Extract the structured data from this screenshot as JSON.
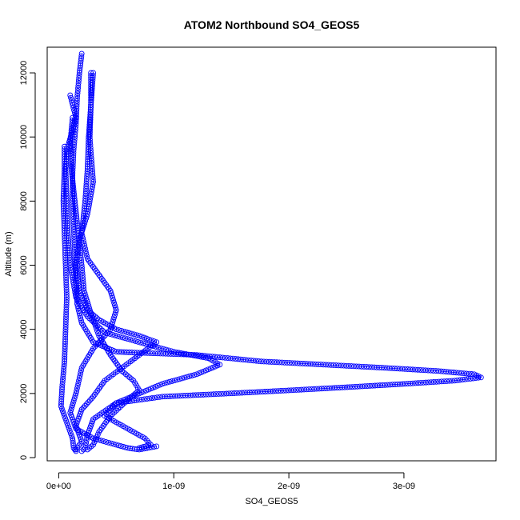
{
  "chart_data": {
    "type": "scatter",
    "title": "ATOM2 Northbound SO4_GEOS5",
    "xlabel": "SO4_GEOS5",
    "ylabel": "Altitude (m)",
    "xlim": [
      -1e-10,
      3.8e-09
    ],
    "ylim": [
      -100,
      12800
    ],
    "xticks": [
      0,
      1e-09,
      2e-09,
      3e-09
    ],
    "xtick_labels": [
      "0e+00",
      "1e-09",
      "2e-09",
      "3e-09"
    ],
    "yticks": [
      0,
      2000,
      4000,
      6000,
      8000,
      10000,
      12000
    ],
    "ytick_labels": [
      "0",
      "2000",
      "4000",
      "6000",
      "8000",
      "10000",
      "12000"
    ],
    "grid": false,
    "marker": "open-circle",
    "color": "#0000ff",
    "series": [
      {
        "name": "",
        "lines": true,
        "points": [
          [
            2e-10,
            12600
          ],
          [
            1.8e-10,
            12000
          ],
          [
            1.6e-10,
            11200
          ],
          [
            1.5e-10,
            10400
          ],
          [
            1.3e-10,
            9600
          ],
          [
            1.2e-10,
            8800
          ],
          [
            1.2e-10,
            8000
          ],
          [
            1.3e-10,
            7200
          ],
          [
            1.4e-10,
            6400
          ],
          [
            1.5e-10,
            5600
          ],
          [
            1.6e-10,
            4800
          ],
          [
            2e-10,
            4200
          ],
          [
            3e-10,
            3600
          ],
          [
            5e-10,
            3300
          ],
          [
            1.2e-09,
            3200
          ],
          [
            1.76e-09,
            3000
          ],
          [
            2.3e-09,
            2900
          ],
          [
            2.83e-09,
            2800
          ],
          [
            3.3e-09,
            2700
          ],
          [
            3.61e-09,
            2600
          ],
          [
            3.67e-09,
            2500
          ],
          [
            3.44e-09,
            2400
          ],
          [
            3.01e-09,
            2300
          ],
          [
            2.53e-09,
            2200
          ],
          [
            2.02e-09,
            2100
          ],
          [
            1.48e-09,
            2000
          ],
          [
            9e-10,
            1900
          ],
          [
            5e-10,
            1700
          ],
          [
            3e-10,
            1200
          ],
          [
            2.5e-10,
            700
          ],
          [
            2.3e-10,
            300
          ],
          [
            2e-10,
            200
          ]
        ]
      },
      {
        "name": "",
        "lines": true,
        "points": [
          [
            3e-10,
            12000
          ],
          [
            2.8e-10,
            11000
          ],
          [
            2.6e-10,
            10000
          ],
          [
            2.5e-10,
            9000
          ],
          [
            2.3e-10,
            8000
          ],
          [
            2e-10,
            7000
          ],
          [
            2.5e-10,
            6200
          ],
          [
            3.5e-10,
            5700
          ],
          [
            4.5e-10,
            5200
          ],
          [
            5e-10,
            4600
          ],
          [
            4.5e-10,
            4000
          ],
          [
            3e-10,
            3400
          ],
          [
            2e-10,
            2800
          ],
          [
            1.5e-10,
            2000
          ],
          [
            1e-10,
            1400
          ],
          [
            1.5e-10,
            900
          ],
          [
            3e-10,
            600
          ],
          [
            5e-10,
            400
          ],
          [
            6e-10,
            300
          ],
          [
            7e-10,
            250
          ],
          [
            8.5e-10,
            350
          ]
        ]
      },
      {
        "name": "",
        "lines": true,
        "points": [
          [
            1e-10,
            11300
          ],
          [
            1.5e-10,
            10600
          ],
          [
            8e-11,
            9700
          ],
          [
            6e-11,
            9000
          ],
          [
            7e-11,
            8000
          ],
          [
            8e-11,
            7000
          ],
          [
            1e-10,
            6000
          ],
          [
            1.5e-10,
            5000
          ],
          [
            2.5e-10,
            4400
          ],
          [
            4e-10,
            3900
          ],
          [
            6e-10,
            3700
          ],
          [
            8e-10,
            3500
          ],
          [
            1e-09,
            3300
          ],
          [
            1.3e-09,
            3100
          ],
          [
            1.4e-09,
            2900
          ],
          [
            1.2e-09,
            2600
          ],
          [
            9e-10,
            2300
          ],
          [
            7e-10,
            2000
          ],
          [
            5e-10,
            1700
          ],
          [
            4e-10,
            1300
          ],
          [
            6e-10,
            900
          ],
          [
            7.5e-10,
            600
          ],
          [
            8e-10,
            400
          ],
          [
            7e-10,
            300
          ]
        ]
      },
      {
        "name": "",
        "lines": true,
        "points": [
          [
            2.8e-10,
            12000
          ],
          [
            2.8e-10,
            11000
          ],
          [
            2.7e-10,
            10000
          ],
          [
            2.8e-10,
            9500
          ],
          [
            3e-10,
            8600
          ],
          [
            2.5e-10,
            7600
          ],
          [
            1.8e-10,
            6800
          ],
          [
            1.5e-10,
            6000
          ],
          [
            1.8e-10,
            5200
          ],
          [
            2.5e-10,
            4600
          ],
          [
            3.5e-10,
            4300
          ],
          [
            5e-10,
            4000
          ],
          [
            7e-10,
            3800
          ],
          [
            8.5e-10,
            3600
          ],
          [
            7e-10,
            3200
          ],
          [
            5.5e-10,
            2800
          ],
          [
            4e-10,
            2400
          ],
          [
            3e-10,
            1900
          ],
          [
            2e-10,
            1500
          ],
          [
            1.5e-10,
            1000
          ],
          [
            2e-10,
            500
          ],
          [
            1.5e-10,
            250
          ]
        ]
      },
      {
        "name": "",
        "lines": true,
        "points": [
          [
            5e-11,
            9700
          ],
          [
            5e-11,
            9000
          ],
          [
            4e-11,
            8000
          ],
          [
            5e-11,
            7000
          ],
          [
            6e-11,
            6000
          ],
          [
            7e-11,
            5000
          ],
          [
            6e-11,
            4000
          ],
          [
            5e-11,
            3000
          ],
          [
            3e-11,
            2200
          ],
          [
            2e-11,
            1600
          ],
          [
            8e-11,
            1000
          ],
          [
            1.2e-10,
            600
          ],
          [
            1.3e-10,
            300
          ],
          [
            1.5e-10,
            200
          ]
        ]
      },
      {
        "name": "",
        "lines": true,
        "points": [
          [
            1.2e-10,
            10600
          ],
          [
            1e-10,
            9800
          ],
          [
            1.1e-10,
            9000
          ],
          [
            1.4e-10,
            8000
          ],
          [
            1.7e-10,
            7000
          ],
          [
            2e-10,
            6000
          ],
          [
            2.2e-10,
            5200
          ],
          [
            2.8e-10,
            4500
          ],
          [
            3.5e-10,
            3800
          ],
          [
            4.5e-10,
            3200
          ],
          [
            5.5e-10,
            2700
          ],
          [
            6.5e-10,
            2400
          ],
          [
            7e-10,
            2100
          ],
          [
            6e-10,
            1800
          ],
          [
            4.5e-10,
            1300
          ],
          [
            3.5e-10,
            800
          ],
          [
            3e-10,
            400
          ],
          [
            2.5e-10,
            250
          ]
        ]
      }
    ]
  }
}
